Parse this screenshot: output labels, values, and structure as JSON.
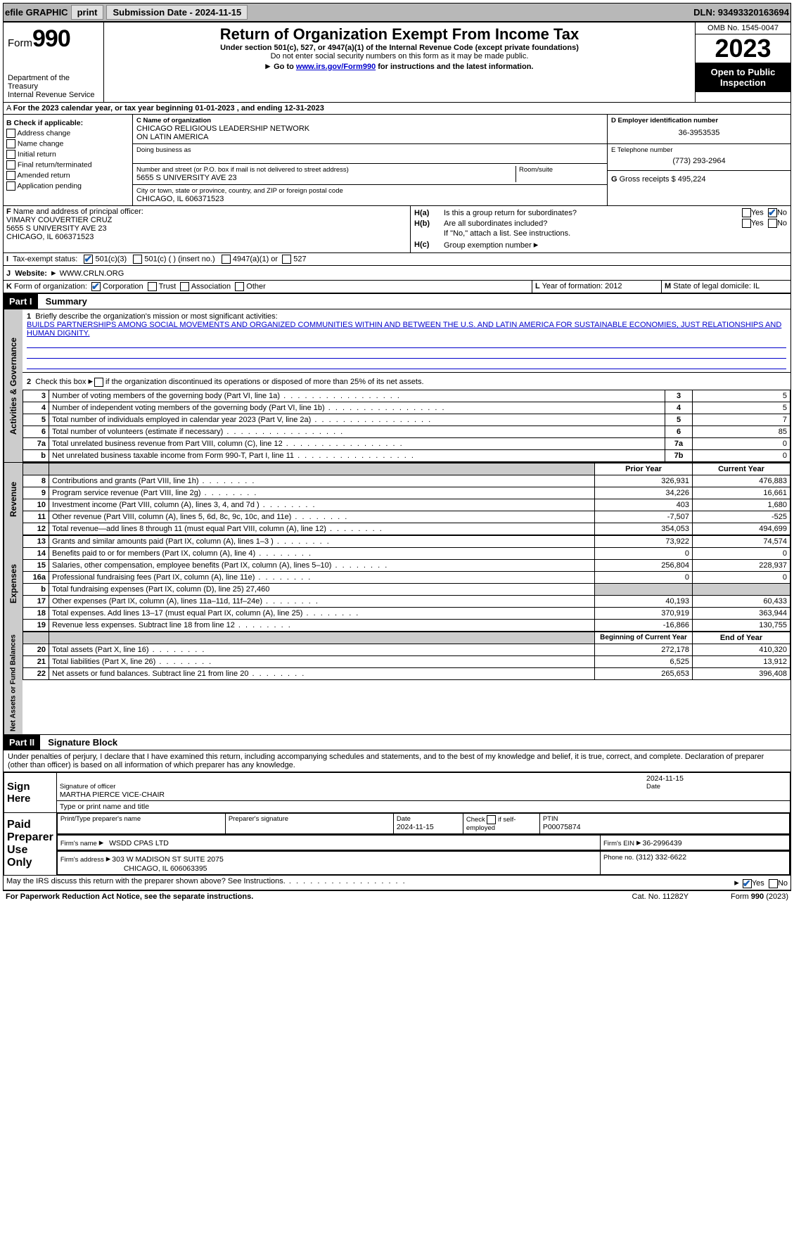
{
  "colors": {
    "link": "#0000cc",
    "header_black": "#000000",
    "shade": "#cccccc",
    "topbar": "#b8b8b8",
    "check": "#1a5fb4"
  },
  "topbar": {
    "efile": "efile GRAPHIC",
    "print": "print",
    "submission_label": "Submission Date - 2024-11-15",
    "dln_label": "DLN: 93493320163694"
  },
  "header": {
    "form_prefix": "Form",
    "form_number": "990",
    "dept": "Department of the Treasury",
    "irs": "Internal Revenue Service",
    "title": "Return of Organization Exempt From Income Tax",
    "subtitle": "Under section 501(c), 527, or 4947(a)(1) of the Internal Revenue Code (except private foundations)",
    "ssn_note": "Do not enter social security numbers on this form as it may be made public.",
    "goto": "Go to ",
    "goto_link": "www.irs.gov/Form990",
    "goto_suffix": " for instructions and the latest information.",
    "omb": "OMB No. 1545-0047",
    "year": "2023",
    "inspect1": "Open to Public",
    "inspect2": "Inspection"
  },
  "line_a": "For the 2023 calendar year, or tax year beginning 01-01-2023   , and ending 12-31-2023",
  "section_b": {
    "title": "B Check if applicable:",
    "items": [
      "Address change",
      "Name change",
      "Initial return",
      "Final return/terminated",
      "Amended return",
      "Application pending"
    ]
  },
  "section_c": {
    "name_label": "C Name of organization",
    "name1": "CHICAGO RELIGIOUS LEADERSHIP NETWORK",
    "name2": "ON LATIN AMERICA",
    "dba_label": "Doing business as",
    "street_label": "Number and street (or P.O. box if mail is not delivered to street address)",
    "street": "5655 S UNIVERSITY AVE 23",
    "room_label": "Room/suite",
    "city_label": "City or town, state or province, country, and ZIP or foreign postal code",
    "city": "CHICAGO, IL  606371523"
  },
  "section_d": {
    "label": "D Employer identification number",
    "value": "36-3953535"
  },
  "section_e": {
    "label": "E Telephone number",
    "value": "(773) 293-2964"
  },
  "section_g": {
    "label": "G",
    "text": "Gross receipts $",
    "value": "495,224"
  },
  "section_f": {
    "label": "F",
    "text": "Name and address of principal officer:",
    "name": "VIMARY COUVERTIER CRUZ",
    "addr1": "5655 S UNIVERSITY AVE 23",
    "addr2": "CHICAGO, IL  606371523"
  },
  "section_h": {
    "a": "Is this a group return for subordinates?",
    "b": "Are all subordinates included?",
    "b_note": "If \"No,\" attach a list. See instructions.",
    "c": "Group exemption number",
    "ha_label": "H(a)",
    "hb_label": "H(b)",
    "hc_label": "H(c)",
    "yes": "Yes",
    "no": "No"
  },
  "section_i": {
    "label": "I",
    "text": "Tax-exempt status:",
    "opt1": "501(c)(3)",
    "opt2": "501(c) (  ) (insert no.)",
    "opt3": "4947(a)(1) or",
    "opt4": "527"
  },
  "section_j": {
    "label": "J",
    "text": "Website:",
    "rightarrow": "▸",
    "value": "WWW.CRLN.ORG"
  },
  "section_k": {
    "label": "K",
    "text": "Form of organization:",
    "opts": [
      "Corporation",
      "Trust",
      "Association",
      "Other"
    ]
  },
  "section_l": {
    "label": "L",
    "text": "Year of formation: 2012"
  },
  "section_m": {
    "label": "M",
    "text": "State of legal domicile: IL"
  },
  "part1": {
    "tab": "Part I",
    "title": "Summary",
    "vtabs": {
      "ag": "Activities & Governance",
      "rev": "Revenue",
      "exp": "Expenses",
      "net": "Net Assets or Fund Balances"
    },
    "line1_label": "1",
    "line1_text": "Briefly describe the organization's mission or most significant activities:",
    "mission": "BUILDS PARTNERSHIPS AMONG SOCIAL MOVEMENTS AND ORGANIZED COMMUNITIES WITHIN AND BETWEEN THE U.S. AND LATIN AMERICA FOR SUSTAINABLE ECONOMIES, JUST RELATIONSHIPS AND HUMAN DIGNITY.",
    "line2": "Check this box          if the organization discontinued its operations or disposed of more than 25% of its net assets.",
    "lines_top": [
      {
        "n": "3",
        "desc": "Number of voting members of the governing body (Part VI, line 1a)",
        "box": "3",
        "val": "5"
      },
      {
        "n": "4",
        "desc": "Number of independent voting members of the governing body (Part VI, line 1b)",
        "box": "4",
        "val": "5"
      },
      {
        "n": "5",
        "desc": "Total number of individuals employed in calendar year 2023 (Part V, line 2a)",
        "box": "5",
        "val": "7"
      },
      {
        "n": "6",
        "desc": "Total number of volunteers (estimate if necessary)",
        "box": "6",
        "val": "85"
      },
      {
        "n": "7a",
        "desc": "Total unrelated business revenue from Part VIII, column (C), line 12",
        "box": "7a",
        "val": "0"
      },
      {
        "n": "b",
        "desc": "Net unrelated business taxable income from Form 990-T, Part I, line 11",
        "box": "7b",
        "val": "0"
      }
    ],
    "col_prior": "Prior Year",
    "col_current": "Current Year",
    "col_begin": "Beginning of Current Year",
    "col_end": "End of Year",
    "revenue": [
      {
        "n": "8",
        "desc": "Contributions and grants (Part VIII, line 1h)",
        "p": "326,931",
        "c": "476,883"
      },
      {
        "n": "9",
        "desc": "Program service revenue (Part VIII, line 2g)",
        "p": "34,226",
        "c": "16,661"
      },
      {
        "n": "10",
        "desc": "Investment income (Part VIII, column (A), lines 3, 4, and 7d )",
        "p": "403",
        "c": "1,680"
      },
      {
        "n": "11",
        "desc": "Other revenue (Part VIII, column (A), lines 5, 6d, 8c, 9c, 10c, and 11e)",
        "p": "-7,507",
        "c": "-525"
      },
      {
        "n": "12",
        "desc": "Total revenue—add lines 8 through 11 (must equal Part VIII, column (A), line 12)",
        "p": "354,053",
        "c": "494,699"
      }
    ],
    "expenses": [
      {
        "n": "13",
        "desc": "Grants and similar amounts paid (Part IX, column (A), lines 1–3 )",
        "p": "73,922",
        "c": "74,574"
      },
      {
        "n": "14",
        "desc": "Benefits paid to or for members (Part IX, column (A), line 4)",
        "p": "0",
        "c": "0"
      },
      {
        "n": "15",
        "desc": "Salaries, other compensation, employee benefits (Part IX, column (A), lines 5–10)",
        "p": "256,804",
        "c": "228,937"
      },
      {
        "n": "16a",
        "desc": "Professional fundraising fees (Part IX, column (A), line 11e)",
        "p": "0",
        "c": "0"
      },
      {
        "n": "b",
        "desc": "Total fundraising expenses (Part IX, column (D), line 25) 27,460",
        "p": "",
        "c": "",
        "shade": true
      },
      {
        "n": "17",
        "desc": "Other expenses (Part IX, column (A), lines 11a–11d, 11f–24e)",
        "p": "40,193",
        "c": "60,433"
      },
      {
        "n": "18",
        "desc": "Total expenses. Add lines 13–17 (must equal Part IX, column (A), line 25)",
        "p": "370,919",
        "c": "363,944"
      },
      {
        "n": "19",
        "desc": "Revenue less expenses. Subtract line 18 from line 12",
        "p": "-16,866",
        "c": "130,755"
      }
    ],
    "net": [
      {
        "n": "20",
        "desc": "Total assets (Part X, line 16)",
        "p": "272,178",
        "c": "410,320"
      },
      {
        "n": "21",
        "desc": "Total liabilities (Part X, line 26)",
        "p": "6,525",
        "c": "13,912"
      },
      {
        "n": "22",
        "desc": "Net assets or fund balances. Subtract line 21 from line 20",
        "p": "265,653",
        "c": "396,408"
      }
    ]
  },
  "part2": {
    "tab": "Part II",
    "title": "Signature Block",
    "decl": "Under penalties of perjury, I declare that I have examined this return, including accompanying schedules and statements, and to the best of my knowledge and belief, it is true, correct, and complete. Declaration of preparer (other than officer) is based on all information of which preparer has any knowledge.",
    "sign_here": "Sign Here",
    "sig_officer": "Signature of officer",
    "officer_name": "MARTHA PIERCE  VICE-CHAIR",
    "type_name": "Type or print name and title",
    "date_label": "Date",
    "sig_date": "2024-11-15",
    "paid": "Paid Preparer Use Only",
    "print_name": "Print/Type preparer's name",
    "prep_sig": "Preparer's signature",
    "prep_date": "2024-11-15",
    "check_self": "Check          if self-employed",
    "ptin_label": "PTIN",
    "ptin": "P00075874",
    "firm_name_label": "Firm's name",
    "firm_name": "WSDD CPAS LTD",
    "firm_ein_label": "Firm's EIN",
    "firm_ein": "36-2996439",
    "firm_addr_label": "Firm's address",
    "firm_addr1": "303 W MADISON ST SUITE 2075",
    "firm_addr2": "CHICAGO, IL  606063395",
    "phone_label": "Phone no.",
    "phone": "(312) 332-6622",
    "discuss": "May the IRS discuss this return with the preparer shown above? See Instructions."
  },
  "footer": {
    "pra": "For Paperwork Reduction Act Notice, see the separate instructions.",
    "cat": "Cat. No. 11282Y",
    "form": "Form 990 (2023)"
  }
}
